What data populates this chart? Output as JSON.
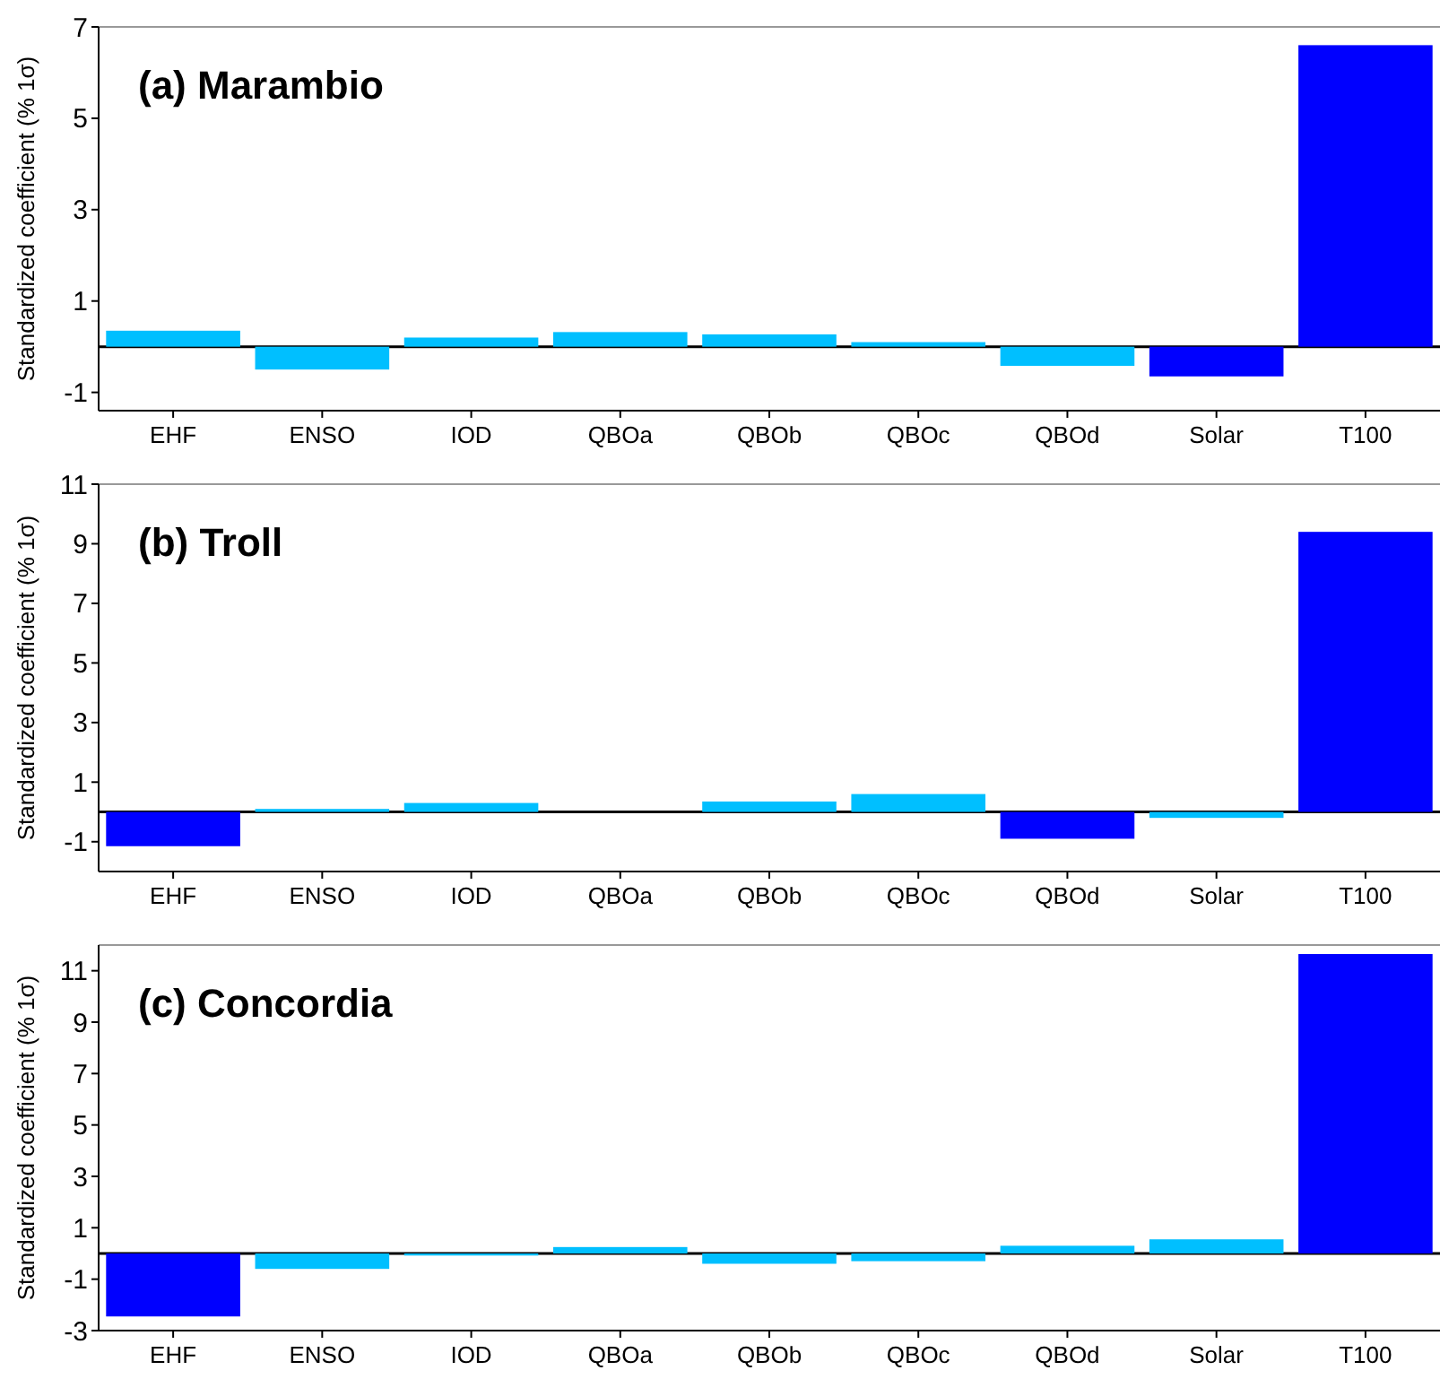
{
  "chart_data": [
    {
      "type": "bar",
      "title": "(a) Marambio",
      "ylabel": "Standardized coefficient (% 1σ)",
      "categories": [
        "EHF",
        "ENSO",
        "IOD",
        "QBOa",
        "QBOb",
        "QBOc",
        "QBOd",
        "Solar",
        "T100"
      ],
      "values": [
        0.35,
        -0.5,
        0.2,
        0.32,
        0.27,
        0.1,
        -0.42,
        -0.65,
        6.6
      ],
      "colors": [
        "#00bfff",
        "#00bfff",
        "#00bfff",
        "#00bfff",
        "#00bfff",
        "#00bfff",
        "#00bfff",
        "#0000ff",
        "#0000ff"
      ],
      "ylim": [
        -1.4,
        7
      ],
      "yticks": [
        -1,
        1,
        3,
        5,
        7
      ],
      "ref_lines": [
        {
          "axis": "y",
          "value": 0
        }
      ],
      "grid": false
    },
    {
      "type": "bar",
      "title": "(b) Troll",
      "ylabel": "Standardized coefficient (% 1σ)",
      "categories": [
        "EHF",
        "ENSO",
        "IOD",
        "QBOa",
        "QBOb",
        "QBOc",
        "QBOd",
        "Solar",
        "T100"
      ],
      "values": [
        -1.15,
        0.1,
        0.3,
        0,
        0.35,
        0.6,
        -0.9,
        -0.2,
        9.4
      ],
      "colors": [
        "#0000ff",
        "#00bfff",
        "#00bfff",
        "#00bfff",
        "#00bfff",
        "#00bfff",
        "#0000ff",
        "#00bfff",
        "#0000ff"
      ],
      "ylim": [
        -2,
        11
      ],
      "yticks": [
        -1,
        1,
        3,
        5,
        7,
        9,
        11
      ],
      "ref_lines": [
        {
          "axis": "y",
          "value": 0
        }
      ],
      "grid": false
    },
    {
      "type": "bar",
      "title": "(c) Concordia",
      "ylabel": "Standardized coefficient (% 1σ)",
      "categories": [
        "EHF",
        "ENSO",
        "IOD",
        "QBOa",
        "QBOb",
        "QBOc",
        "QBOd",
        "Solar",
        "T100"
      ],
      "values": [
        -2.45,
        -0.6,
        -0.08,
        0.25,
        -0.4,
        -0.3,
        0.3,
        0.55,
        11.65
      ],
      "colors": [
        "#0000ff",
        "#00bfff",
        "#00bfff",
        "#00bfff",
        "#00bfff",
        "#00bfff",
        "#00bfff",
        "#00bfff",
        "#0000ff"
      ],
      "ylim": [
        -3,
        12
      ],
      "yticks": [
        -3,
        -1,
        1,
        3,
        5,
        7,
        9,
        11
      ],
      "ref_lines": [
        {
          "axis": "y",
          "value": 0
        }
      ],
      "grid": false
    }
  ]
}
